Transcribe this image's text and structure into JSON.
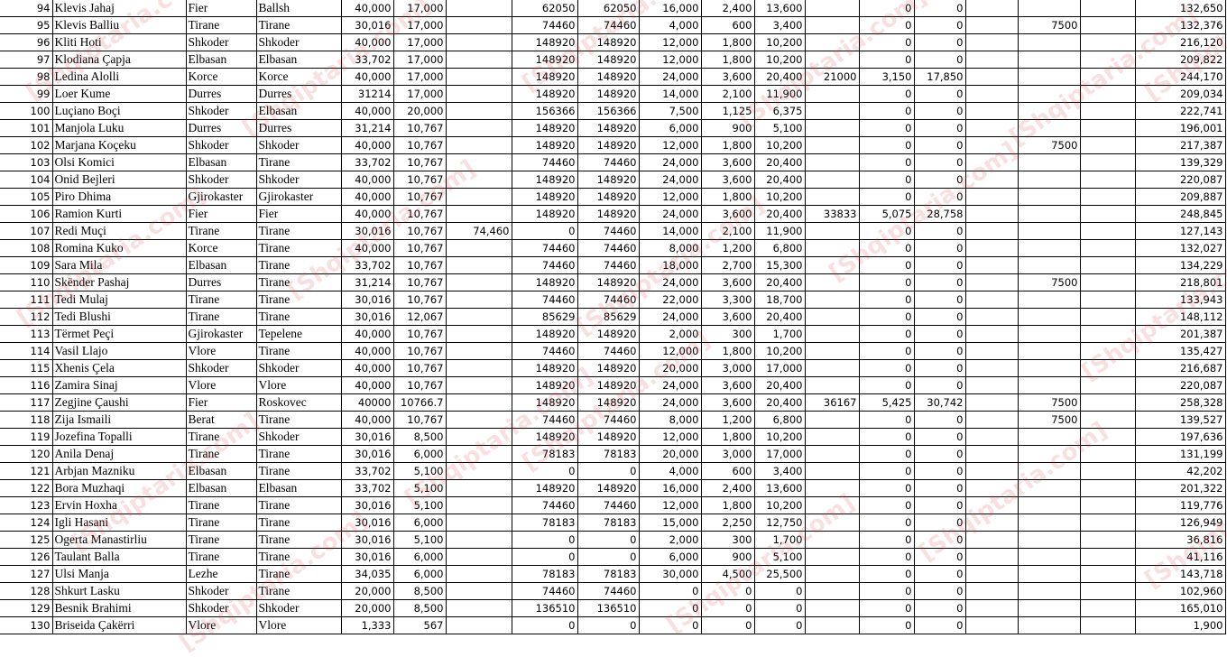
{
  "watermark": "[Shqiptaria.com]",
  "rows": [
    [
      "94",
      "Klevis Jahaj",
      "Fier",
      "Ballsh",
      "40,000",
      "17,000",
      "",
      "62050",
      "62050",
      "16,000",
      "2,400",
      "13,600",
      "",
      "0",
      "0",
      "",
      "",
      "",
      "132,650"
    ],
    [
      "95",
      "Klevis Balliu",
      "Tirane",
      "Tirane",
      "30,016",
      "17,000",
      "",
      "74460",
      "74460",
      "4,000",
      "600",
      "3,400",
      "",
      "0",
      "0",
      "",
      "7500",
      "",
      "132,376"
    ],
    [
      "96",
      "Kliti Hoti",
      "Shkoder",
      "Shkoder",
      "40,000",
      "17,000",
      "",
      "148920",
      "148920",
      "12,000",
      "1,800",
      "10,200",
      "",
      "0",
      "0",
      "",
      "",
      "",
      "216,120"
    ],
    [
      "97",
      "Klodiana Çapja",
      "Elbasan",
      "Elbasan",
      "33,702",
      "17,000",
      "",
      "148920",
      "148920",
      "12,000",
      "1,800",
      "10,200",
      "",
      "0",
      "0",
      "",
      "",
      "",
      "209,822"
    ],
    [
      "98",
      "Ledina Alolli",
      "Korce",
      "Korce",
      "40,000",
      "17,000",
      "",
      "148920",
      "148920",
      "24,000",
      "3,600",
      "20,400",
      "21000",
      "3,150",
      "17,850",
      "",
      "",
      "",
      "244,170"
    ],
    [
      "99",
      "Loer Kume",
      "Durres",
      "Durres",
      "31214",
      "17,000",
      "",
      "148920",
      "148920",
      "14,000",
      "2,100",
      "11,900",
      "",
      "0",
      "0",
      "",
      "",
      "",
      "209,034"
    ],
    [
      "100",
      "Luçiano Boçi",
      "Shkoder",
      "Elbasan",
      "40,000",
      "20,000",
      "",
      "156366",
      "156366",
      "7,500",
      "1,125",
      "6,375",
      "",
      "0",
      "0",
      "",
      "",
      "",
      "222,741"
    ],
    [
      "101",
      "Manjola Luku",
      "Durres",
      "Durres",
      "31,214",
      "10,767",
      "",
      "148920",
      "148920",
      "6,000",
      "900",
      "5,100",
      "",
      "0",
      "0",
      "",
      "",
      "",
      "196,001"
    ],
    [
      "102",
      "Marjana Koçeku",
      "Shkoder",
      "Shkoder",
      "40,000",
      "10,767",
      "",
      "148920",
      "148920",
      "12,000",
      "1,800",
      "10,200",
      "",
      "0",
      "0",
      "",
      "7500",
      "",
      "217,387"
    ],
    [
      "103",
      "Olsi Komici",
      "Elbasan",
      "Tirane",
      "33,702",
      "10,767",
      "",
      "74460",
      "74460",
      "24,000",
      "3,600",
      "20,400",
      "",
      "0",
      "0",
      "",
      "",
      "",
      "139,329"
    ],
    [
      "104",
      "Onid Bejleri",
      "Shkoder",
      "Shkoder",
      "40,000",
      "10,767",
      "",
      "148920",
      "148920",
      "24,000",
      "3,600",
      "20,400",
      "",
      "0",
      "0",
      "",
      "",
      "",
      "220,087"
    ],
    [
      "105",
      "Piro Dhima",
      "Gjirokaster",
      "Gjirokaster",
      "40,000",
      "10,767",
      "",
      "148920",
      "148920",
      "12,000",
      "1,800",
      "10,200",
      "",
      "0",
      "0",
      "",
      "",
      "",
      "209,887"
    ],
    [
      "106",
      "Ramion Kurti",
      "Fier",
      "Fier",
      "40,000",
      "10,767",
      "",
      "148920",
      "148920",
      "24,000",
      "3,600",
      "20,400",
      "33833",
      "5,075",
      "28,758",
      "",
      "",
      "",
      "248,845"
    ],
    [
      "107",
      "Redi Muçi",
      "Tirane",
      "Tirane",
      "30,016",
      "10,767",
      "74,460",
      "0",
      "74460",
      "14,000",
      "2,100",
      "11,900",
      "",
      "0",
      "0",
      "",
      "",
      "",
      "127,143"
    ],
    [
      "108",
      "Romina Kuko",
      "Korce",
      "Tirane",
      "40,000",
      "10,767",
      "",
      "74460",
      "74460",
      "8,000",
      "1,200",
      "6,800",
      "",
      "0",
      "0",
      "",
      "",
      "",
      "132,027"
    ],
    [
      "109",
      "Sara Mila",
      "Elbasan",
      "Tirane",
      "33,702",
      "10,767",
      "",
      "74460",
      "74460",
      "18,000",
      "2,700",
      "15,300",
      "",
      "0",
      "0",
      "",
      "",
      "",
      "134,229"
    ],
    [
      "110",
      "Skënder Pashaj",
      "Durres",
      "Tirane",
      "31,214",
      "10,767",
      "",
      "148920",
      "148920",
      "24,000",
      "3,600",
      "20,400",
      "",
      "0",
      "0",
      "",
      "7500",
      "",
      "218,801"
    ],
    [
      "111",
      "Tedi Mulaj",
      "Tirane",
      "Tirane",
      "30,016",
      "10,767",
      "",
      "74460",
      "74460",
      "22,000",
      "3,300",
      "18,700",
      "",
      "0",
      "0",
      "",
      "",
      "",
      "133,943"
    ],
    [
      "112",
      "Tedi Blushi",
      "Tirane",
      "Tirane",
      "30,016",
      "12,067",
      "",
      "85629",
      "85629",
      "24,000",
      "3,600",
      "20,400",
      "",
      "0",
      "0",
      "",
      "",
      "",
      "148,112"
    ],
    [
      "113",
      "Tërmet Peçi",
      "Gjirokaster",
      "Tepelene",
      "40,000",
      "10,767",
      "",
      "148920",
      "148920",
      "2,000",
      "300",
      "1,700",
      "",
      "0",
      "0",
      "",
      "",
      "",
      "201,387"
    ],
    [
      "114",
      "Vasil Llajo",
      "Vlore",
      "Tirane",
      "40,000",
      "10,767",
      "",
      "74460",
      "74460",
      "12,000",
      "1,800",
      "10,200",
      "",
      "0",
      "0",
      "",
      "",
      "",
      "135,427"
    ],
    [
      "115",
      "Xhenis Çela",
      "Shkoder",
      "Shkoder",
      "40,000",
      "10,767",
      "",
      "148920",
      "148920",
      "20,000",
      "3,000",
      "17,000",
      "",
      "0",
      "0",
      "",
      "",
      "",
      "216,687"
    ],
    [
      "116",
      "Zamira Sinaj",
      "Vlore",
      "Vlore",
      "40,000",
      "10,767",
      "",
      "148920",
      "148920",
      "24,000",
      "3,600",
      "20,400",
      "",
      "0",
      "0",
      "",
      "",
      "",
      "220,087"
    ],
    [
      "117",
      "Zegjine Çaushi",
      "Fier",
      "Roskovec",
      "40000",
      "10766.7",
      "",
      "148920",
      "148920",
      "24,000",
      "3,600",
      "20,400",
      "36167",
      "5,425",
      "30,742",
      "",
      "7500",
      "",
      "258,328"
    ],
    [
      "118",
      "Zija Ismaili",
      "Berat",
      "Tirane",
      "40,000",
      "10,767",
      "",
      "74460",
      "74460",
      "8,000",
      "1,200",
      "6,800",
      "",
      "0",
      "0",
      "",
      "7500",
      "",
      "139,527"
    ],
    [
      "119",
      "Jozefina Topalli",
      "Tirane",
      "Shkoder",
      "30,016",
      "8,500",
      "",
      "148920",
      "148920",
      "12,000",
      "1,800",
      "10,200",
      "",
      "0",
      "0",
      "",
      "",
      "",
      "197,636"
    ],
    [
      "120",
      "Anila Denaj",
      "Tirane",
      "Tirane",
      "30,016",
      "6,000",
      "",
      "78183",
      "78183",
      "20,000",
      "3,000",
      "17,000",
      "",
      "0",
      "0",
      "",
      "",
      "",
      "131,199"
    ],
    [
      "121",
      "Arbjan Mazniku",
      "Elbasan",
      "Tirane",
      "33,702",
      "5,100",
      "",
      "0",
      "0",
      "4,000",
      "600",
      "3,400",
      "",
      "0",
      "0",
      "",
      "",
      "",
      "42,202"
    ],
    [
      "122",
      "Bora Muzhaqi",
      "Elbasan",
      "Elbasan",
      "33,702",
      "5,100",
      "",
      "148920",
      "148920",
      "16,000",
      "2,400",
      "13,600",
      "",
      "0",
      "0",
      "",
      "",
      "",
      "201,322"
    ],
    [
      "123",
      "Ervin Hoxha",
      "Tirane",
      "Tirane",
      "30,016",
      "5,100",
      "",
      "74460",
      "74460",
      "12,000",
      "1,800",
      "10,200",
      "",
      "0",
      "0",
      "",
      "",
      "",
      "119,776"
    ],
    [
      "124",
      "Igli Hasani",
      "Tirane",
      "Tirane",
      "30,016",
      "6,000",
      "",
      "78183",
      "78183",
      "15,000",
      "2,250",
      "12,750",
      "",
      "0",
      "0",
      "",
      "",
      "",
      "126,949"
    ],
    [
      "125",
      "Ogerta Manastirliu",
      "Tirane",
      "Tirane",
      "30,016",
      "5,100",
      "",
      "0",
      "0",
      "2,000",
      "300",
      "1,700",
      "",
      "0",
      "0",
      "",
      "",
      "",
      "36,816"
    ],
    [
      "126",
      "Taulant Balla",
      "Tirane",
      "Tirane",
      "30,016",
      "6,000",
      "",
      "0",
      "0",
      "6,000",
      "900",
      "5,100",
      "",
      "0",
      "0",
      "",
      "",
      "",
      "41,116"
    ],
    [
      "127",
      "Ulsi Manja",
      "Lezhe",
      "Tirane",
      "34,035",
      "6,000",
      "",
      "78183",
      "78183",
      "30,000",
      "4,500",
      "25,500",
      "",
      "0",
      "0",
      "",
      "",
      "",
      "143,718"
    ],
    [
      "128",
      "Shkurt Lasku",
      "Shkoder",
      "Tirane",
      "20,000",
      "8,500",
      "",
      "74460",
      "74460",
      "0",
      "0",
      "0",
      "",
      "0",
      "0",
      "",
      "",
      "",
      "102,960"
    ],
    [
      "129",
      "Besnik Brahimi",
      "Shkoder",
      "Shkoder",
      "20,000",
      "8,500",
      "",
      "136510",
      "136510",
      "0",
      "0",
      "0",
      "",
      "0",
      "0",
      "",
      "",
      "",
      "165,010"
    ],
    [
      "130",
      "Briseida Çakërri",
      "Vlore",
      "Vlore",
      "1,333",
      "567",
      "",
      "0",
      "0",
      "0",
      "0",
      "0",
      "",
      "0",
      "0",
      "",
      "",
      "",
      "1,900"
    ]
  ]
}
